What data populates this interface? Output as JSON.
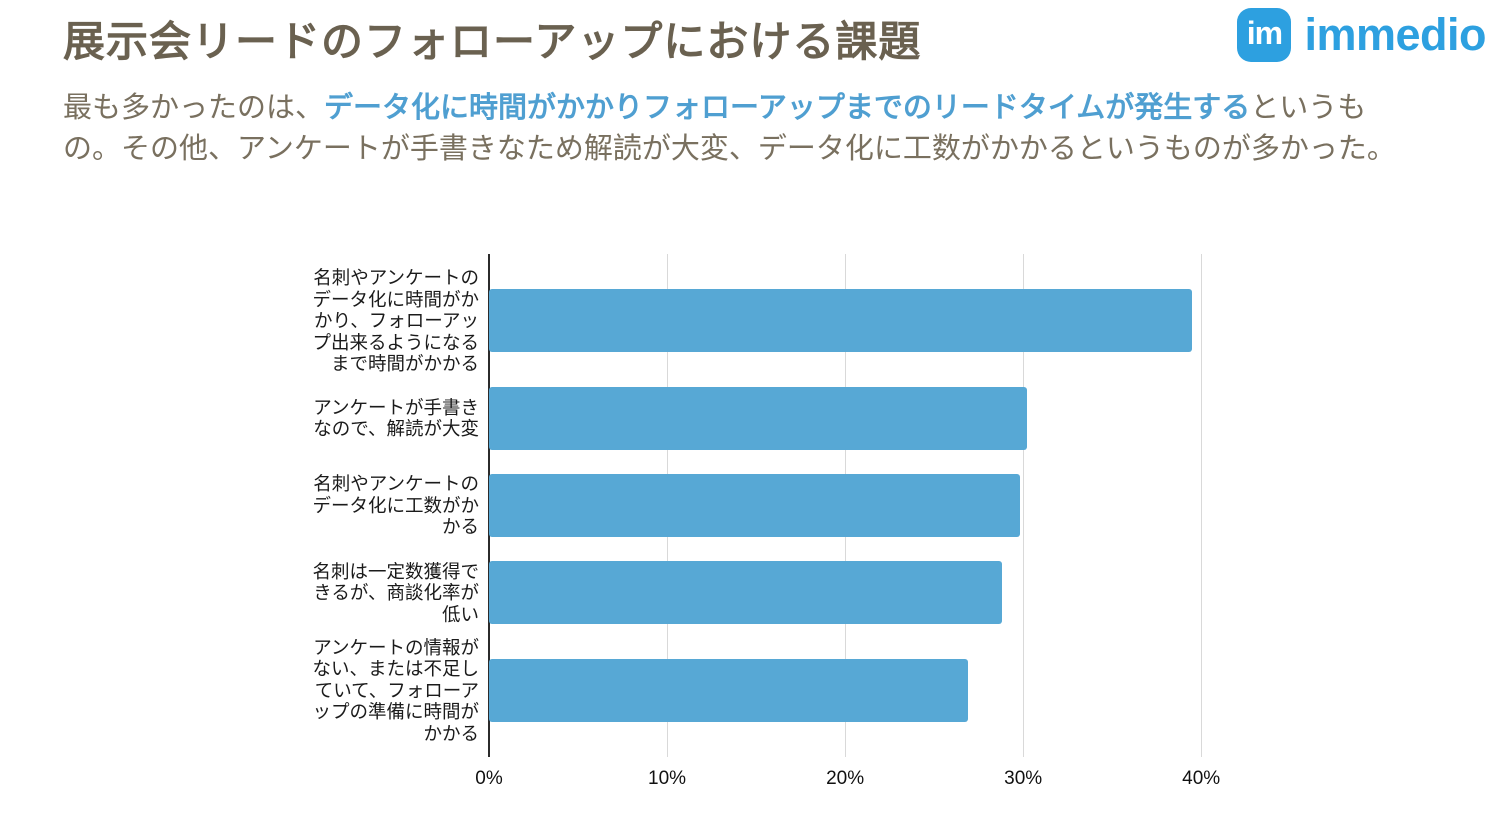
{
  "header": {
    "title": "展示会リードのフォローアップにおける課題",
    "logo": {
      "icon_text": "im",
      "brand": "immedio",
      "color": "#2da0e0"
    }
  },
  "intro": {
    "prefix": "最も多かったのは、",
    "highlight": "データ化に時間がかかりフォローアップまでのリードタイムが発生する",
    "suffix": "というも\nの。その他、アンケートが手書きなため解読が大変、データ化に工数がかかるというものが多かった。"
  },
  "chart_data": {
    "type": "bar",
    "orientation": "horizontal",
    "title": "展示会リードのフォローアップにおける課題",
    "categories": [
      "名刺やアンケートの\nデータ化に時間がか\nかり、フォローアッ\nプ出来るようになる\nまで時間がかかる",
      "アンケートが手書き\nなので、解読が大変",
      "名刺やアンケートの\nデータ化に工数がか\nかる",
      "名刺は一定数獲得で\nきるが、商談化率が\n低い",
      "アンケートの情報が\nない、または不足し\nていて、フォローア\nップの準備に時間が\nかかる"
    ],
    "values": [
      39.5,
      30.2,
      29.8,
      28.8,
      26.9
    ],
    "value_unit": "%",
    "xlim": [
      0,
      41
    ],
    "x_ticks": [
      0,
      10,
      20,
      30,
      40
    ],
    "x_tick_labels": [
      "0%",
      "10%",
      "20%",
      "30%",
      "40%"
    ],
    "xlabel": "",
    "ylabel": "",
    "bar_color": "#57a8d5",
    "gridline_color": "#d9d9d9",
    "axis_color": "#2b2b2b",
    "grid": "vertical",
    "legend": "none"
  }
}
